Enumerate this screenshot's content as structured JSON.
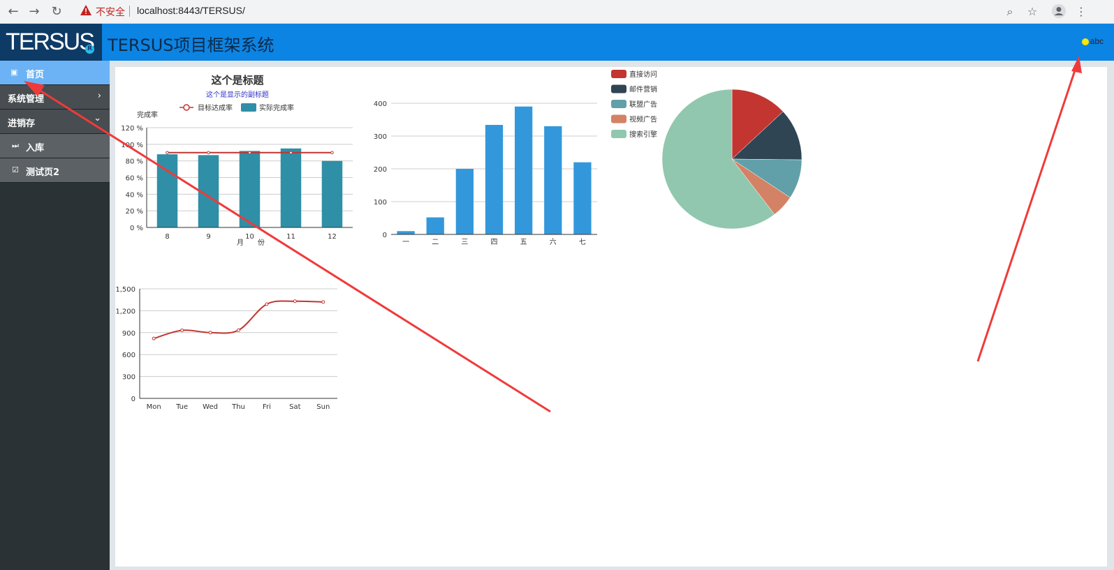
{
  "browser": {
    "insecure_label": "不安全",
    "url": "localhost:8443/TERSUS/"
  },
  "app": {
    "logo_text": "TERSUS",
    "logo_mark": "R",
    "title": "TERSUS项目框架系统",
    "user": "abc"
  },
  "sidebar": {
    "items": [
      {
        "label": "首页",
        "icon": "picture-icon",
        "arrow": ""
      },
      {
        "label": "系统管理",
        "icon": "",
        "arrow": "›"
      },
      {
        "label": "进销存",
        "icon": "",
        "arrow": "⌄"
      },
      {
        "label": "入库",
        "icon": "fast-forward-icon",
        "arrow": ""
      },
      {
        "label": "测试页2",
        "icon": "check-square-icon",
        "arrow": ""
      }
    ]
  },
  "chart_data": [
    {
      "type": "bar",
      "title": "这个是标题",
      "subtitle": "这个是显示的副标题",
      "xlabel": "月　　份",
      "ylabel": "完成率",
      "categories": [
        "8",
        "9",
        "10",
        "11",
        "12"
      ],
      "yticks": [
        "0 %",
        "20 %",
        "40 %",
        "60 %",
        "80 %",
        "100 %",
        "120 %"
      ],
      "ylim": [
        0,
        120
      ],
      "legend": [
        "目标达成率",
        "实际完成率"
      ],
      "series": [
        {
          "name": "实际完成率",
          "type": "bar",
          "values": [
            88,
            87,
            92,
            95,
            80
          ],
          "color": "#2f8fa6"
        },
        {
          "name": "目标达成率",
          "type": "line",
          "values": [
            90,
            90,
            90,
            90,
            90
          ],
          "color": "#c23531"
        }
      ]
    },
    {
      "type": "bar",
      "categories": [
        "一",
        "二",
        "三",
        "四",
        "五",
        "六",
        "七"
      ],
      "values": [
        10,
        52,
        200,
        334,
        390,
        330,
        220
      ],
      "ylim": [
        0,
        400
      ],
      "yticks": [
        "0",
        "100",
        "200",
        "300",
        "400"
      ],
      "color": "#3398db"
    },
    {
      "type": "pie",
      "legend": [
        "直接访问",
        "邮件营销",
        "联盟广告",
        "视频广告",
        "搜索引擎"
      ],
      "values": [
        335,
        310,
        234,
        135,
        1548
      ],
      "colors": [
        "#c23531",
        "#2f4554",
        "#61a0a8",
        "#d48265",
        "#91c7ae"
      ]
    },
    {
      "type": "line",
      "categories": [
        "Mon",
        "Tue",
        "Wed",
        "Thu",
        "Fri",
        "Sat",
        "Sun"
      ],
      "values": [
        820,
        932,
        901,
        934,
        1290,
        1330,
        1320
      ],
      "ylim": [
        0,
        1500
      ],
      "yticks": [
        "0",
        "300",
        "600",
        "900",
        "1,200",
        "1,500"
      ],
      "color": "#c23531"
    }
  ]
}
